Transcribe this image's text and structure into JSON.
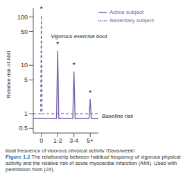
{
  "chart_data": {
    "type": "line",
    "y_label": "Relative risk of AMI",
    "x_label": "Habitual frequency of vigorous physical activity (Days/week)",
    "caption_label": "Figure 1.2",
    "caption": "The relationship between habitual frequency of vigorous physical activity and the relative risk of acute myocardial infarction (AMI). Used with permission from (24).",
    "log": "y",
    "xlim": [
      -0.5,
      3.5
    ],
    "xticks": [
      0,
      {
        "value": 1,
        "label": "1-2"
      },
      {
        "value": 2,
        "label": "3-4"
      },
      {
        "value": 3,
        "label": "5+"
      }
    ],
    "ylim": [
      0.4,
      150
    ],
    "yticks": [
      0.5,
      1,
      5,
      10,
      50,
      100
    ],
    "legend": "upper right",
    "series": [
      {
        "name": "Active subject",
        "color": "#7b62b0",
        "line_style": "solid",
        "x": [
          -0.5,
          0.93,
          1,
          1.07,
          1.93,
          2,
          2.07,
          2.93,
          3,
          3.07,
          3.5
        ],
        "values": [
          0.8,
          0.8,
          20,
          0.8,
          0.8,
          7.4,
          0.8,
          0.8,
          2,
          0.8,
          0.8
        ]
      },
      {
        "name": "Sedentary subject",
        "color": "#7b62b0",
        "line_style": "dashed",
        "x": [
          -0.5,
          -0.04,
          0,
          0.04,
          3.5
        ],
        "values": [
          1,
          1,
          107,
          1,
          1
        ]
      }
    ],
    "annotations": [
      {
        "text": "*",
        "x": 0,
        "y": 107
      },
      {
        "text": "*",
        "x": 1,
        "y": 20
      },
      {
        "text": "*",
        "x": 2,
        "y": 7.4
      },
      {
        "text": "*",
        "x": 3,
        "y": 2
      },
      {
        "text": "Vigorous exercise bout",
        "x": 2.3,
        "y": 40
      },
      {
        "text": "Baseline risk",
        "x": 3.5,
        "y": 0.9
      }
    ]
  }
}
